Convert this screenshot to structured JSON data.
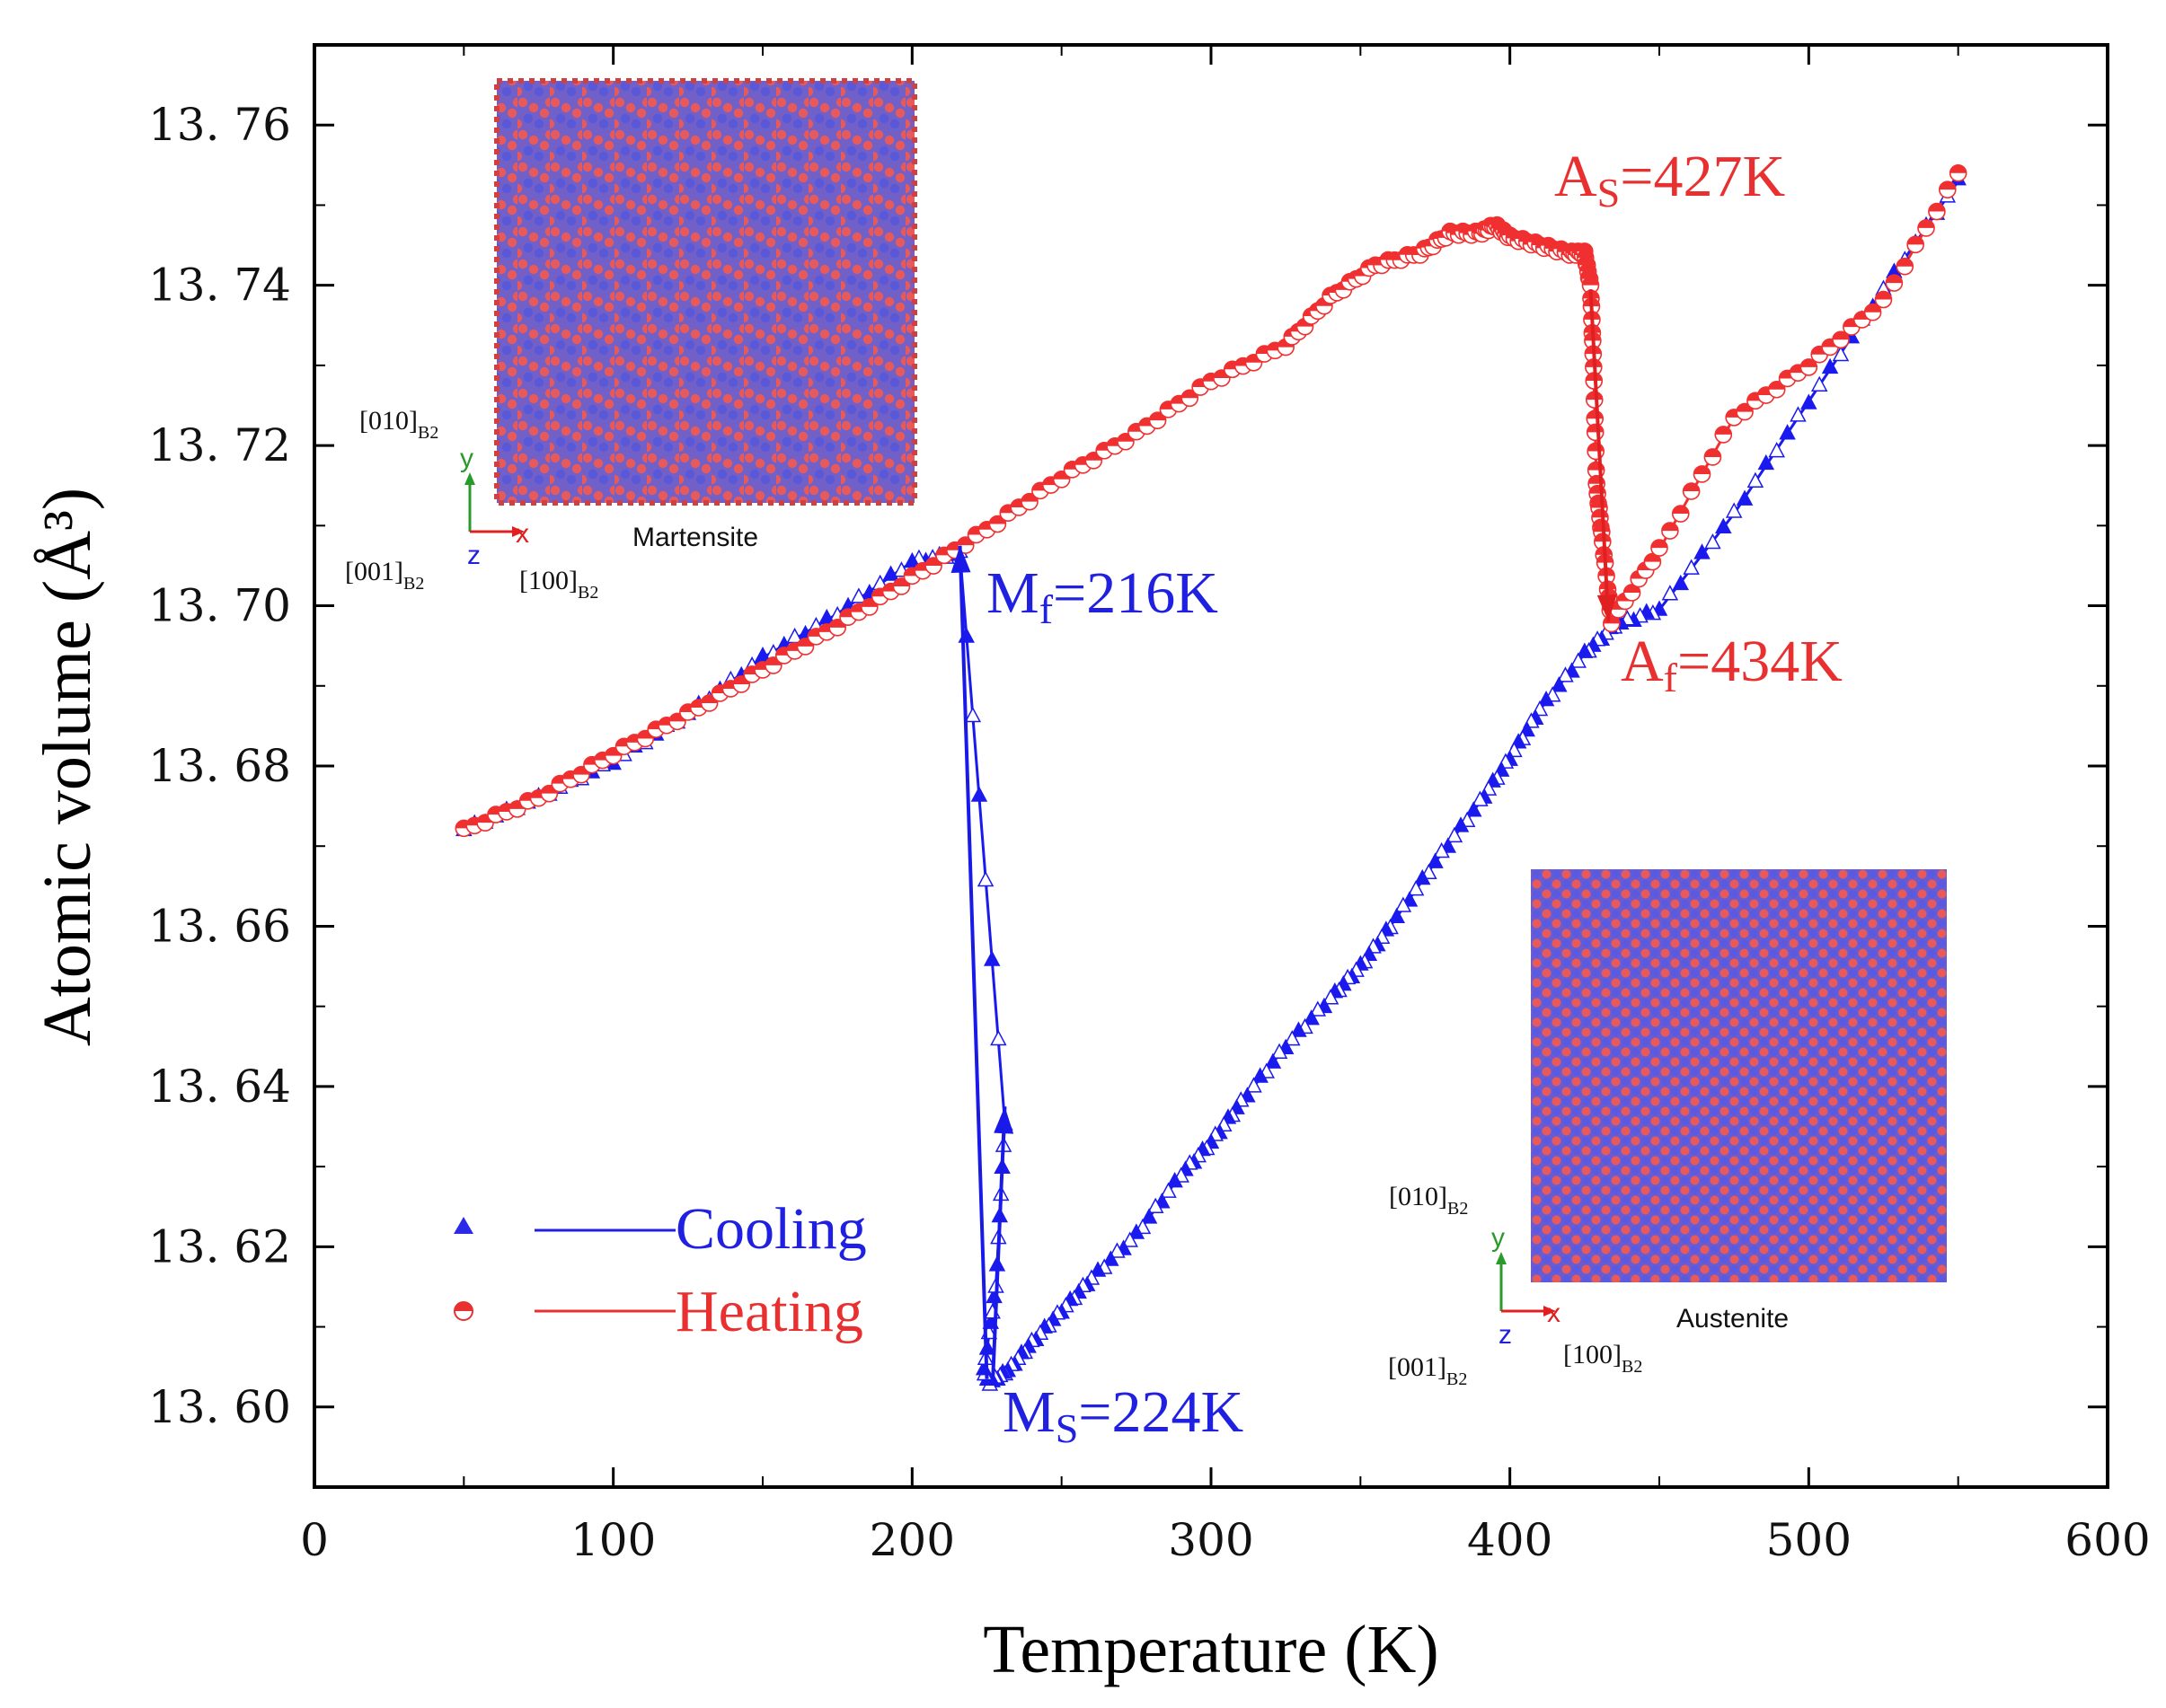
{
  "chart_data": {
    "type": "scatter",
    "xlabel": "Temperature (K)",
    "ylabel": "Atomic volume (Å³)",
    "xlim": [
      0,
      600
    ],
    "ylim": [
      13.59,
      13.77
    ],
    "x_ticks": [
      0,
      100,
      200,
      300,
      400,
      500,
      600
    ],
    "x_tick_labels": [
      "0",
      "100",
      "200",
      "300",
      "400",
      "500",
      "600"
    ],
    "y_ticks": [
      13.6,
      13.62,
      13.64,
      13.66,
      13.68,
      13.7,
      13.72,
      13.74,
      13.76
    ],
    "y_tick_labels": [
      "13. 60",
      "13. 62",
      "13. 64",
      "13. 66",
      "13. 68",
      "13. 70",
      "13. 72",
      "13. 74",
      "13. 76"
    ],
    "grid": false,
    "legend_position": "bottom-left",
    "series": [
      {
        "name": "Cooling",
        "color": "#1a1aee",
        "marker": "triangle",
        "x": [
          550,
          525,
          500,
          475,
          450,
          435,
          425,
          410,
          400,
          390,
          375,
          360,
          350,
          340,
          325,
          310,
          300,
          290,
          275,
          260,
          250,
          240,
          232,
          226,
          224,
          228,
          231,
          216,
          200,
          175,
          150,
          125,
          100,
          75,
          50
        ],
        "y": [
          13.753,
          13.7395,
          13.7255,
          13.7115,
          13.6995,
          13.6975,
          13.694,
          13.687,
          13.681,
          13.6755,
          13.668,
          13.66,
          13.655,
          13.651,
          13.645,
          13.638,
          13.633,
          13.629,
          13.6215,
          13.616,
          13.612,
          13.608,
          13.6045,
          13.603,
          13.6045,
          13.615,
          13.6355,
          13.7065,
          13.7055,
          13.699,
          13.6935,
          13.6865,
          13.6805,
          13.676,
          13.672
        ]
      },
      {
        "name": "Heating",
        "color": "#f03030",
        "marker": "half-circle",
        "x": [
          50,
          75,
          100,
          125,
          150,
          175,
          200,
          225,
          250,
          275,
          300,
          325,
          340,
          355,
          370,
          380,
          390,
          395,
          400,
          410,
          420,
          425,
          427,
          428,
          429,
          431,
          434,
          450,
          475,
          500,
          525,
          550
        ],
        "y": [
          13.672,
          13.676,
          13.6815,
          13.6865,
          13.692,
          13.6975,
          13.7035,
          13.7095,
          13.716,
          13.7215,
          13.728,
          13.7325,
          13.7385,
          13.7425,
          13.744,
          13.7465,
          13.7465,
          13.7475,
          13.746,
          13.745,
          13.744,
          13.744,
          13.74,
          13.73,
          13.715,
          13.708,
          13.698,
          13.707,
          13.7235,
          13.73,
          13.738,
          13.754
        ]
      }
    ],
    "annotations": {
      "as_main": "A",
      "as_sub": "S",
      "as_value": "=427K",
      "af_main": "A",
      "af_sub": "f",
      "af_value": "=434K",
      "mf_main": "M",
      "mf_sub": "f",
      "mf_value": "=216K",
      "ms_main": "M",
      "ms_sub": "S",
      "ms_value": "=224K"
    },
    "legend": {
      "cooling_label": "Cooling",
      "heating_label": "Heating"
    },
    "insets": {
      "martensite": {
        "caption": "Martensite",
        "label_010": "[010]",
        "label_001": "[001]",
        "label_100": "[100]",
        "sub": "B2",
        "axis_y": "y",
        "axis_x": "x",
        "axis_z": "z"
      },
      "austenite": {
        "caption": "Austenite",
        "label_010": "[010]",
        "label_001": "[001]",
        "label_100": "[100]",
        "sub": "B2",
        "axis_y": "y",
        "axis_x": "x",
        "axis_z": "z"
      }
    },
    "colors": {
      "cooling": "#1a1aee",
      "heating": "#f03030",
      "atom_red": "#ee5a5a",
      "atom_blue": "#5a5ae0"
    }
  }
}
